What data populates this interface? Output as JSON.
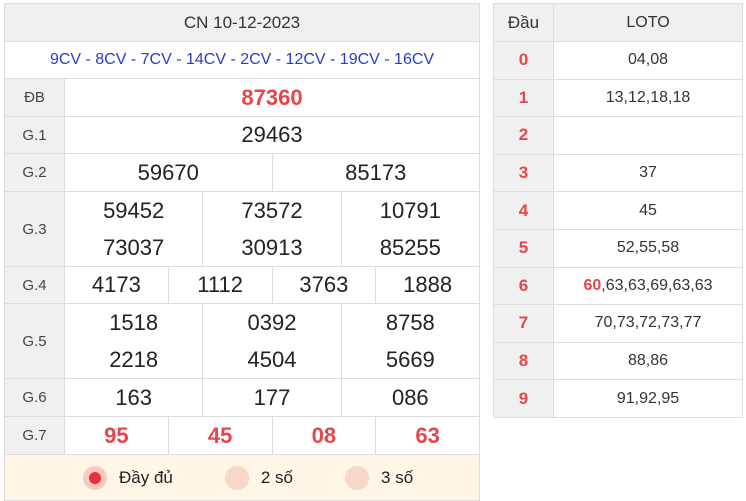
{
  "header": "CN 10-12-2023",
  "codes": "9CV - 8CV - 7CV - 14CV - 2CV - 12CV - 19CV - 16CV",
  "prizes": [
    {
      "label": "ĐB",
      "rows": [
        [
          "87360"
        ]
      ],
      "red": true
    },
    {
      "label": "G.1",
      "rows": [
        [
          "29463"
        ]
      ]
    },
    {
      "label": "G.2",
      "rows": [
        [
          "59670",
          "85173"
        ]
      ]
    },
    {
      "label": "G.3",
      "rows": [
        [
          "59452",
          "73572",
          "10791"
        ],
        [
          "73037",
          "30913",
          "85255"
        ]
      ]
    },
    {
      "label": "G.4",
      "rows": [
        [
          "4173",
          "1112",
          "3763",
          "1888"
        ]
      ]
    },
    {
      "label": "G.5",
      "rows": [
        [
          "1518",
          "0392",
          "8758"
        ],
        [
          "2218",
          "4504",
          "5669"
        ]
      ]
    },
    {
      "label": "G.6",
      "rows": [
        [
          "163",
          "177",
          "086"
        ]
      ]
    },
    {
      "label": "G.7",
      "rows": [
        [
          "95",
          "45",
          "08",
          "63"
        ]
      ],
      "red": true
    }
  ],
  "options": [
    {
      "label": "Đầy đủ",
      "selected": true
    },
    {
      "label": "2 số",
      "selected": false
    },
    {
      "label": "3 số",
      "selected": false
    }
  ],
  "loto_table": {
    "col_head": "Đầu",
    "col_loto": "LOTO",
    "rows": [
      {
        "head": "0",
        "values": "04,08"
      },
      {
        "head": "1",
        "values": "13,12,18,18"
      },
      {
        "head": "2",
        "values": ""
      },
      {
        "head": "3",
        "values": "37"
      },
      {
        "head": "4",
        "values": "45"
      },
      {
        "head": "5",
        "values": "52,55,58"
      },
      {
        "head": "6",
        "highlight": "60",
        "values": ",63,63,69,63,63"
      },
      {
        "head": "7",
        "values": "70,73,72,73,77"
      },
      {
        "head": "8",
        "values": "88,86"
      },
      {
        "head": "9",
        "values": "91,92,95"
      }
    ]
  },
  "colors": {
    "accent_red": "#e8454b",
    "code_blue": "#2b3cc7",
    "header_gray": "#f0f0f0"
  }
}
